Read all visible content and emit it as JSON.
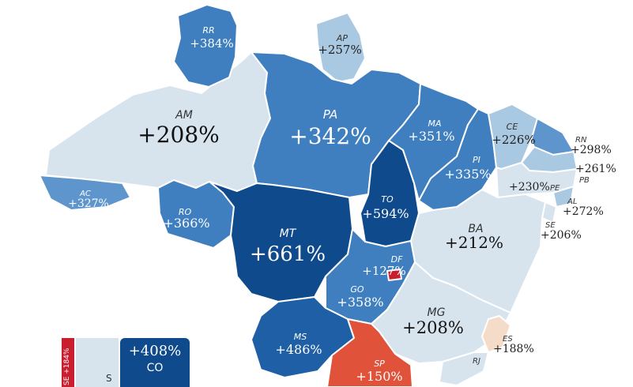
{
  "colors": {
    "darkest": "#0f4a8c",
    "dark": "#1f5fa5",
    "medium": "#3f7fbf",
    "medium_light": "#5d95cc",
    "light": "#a9c8e2",
    "lightest": "#d7e4ee",
    "peach": "#f5dcc8",
    "orange_red": "#e0533a",
    "red": "#c81e2e"
  },
  "states": [
    {
      "id": "AM",
      "abbr": "AM",
      "value": "+208%",
      "color": "lightest"
    },
    {
      "id": "RR",
      "abbr": "RR",
      "value": "+384%",
      "color": "medium"
    },
    {
      "id": "AP",
      "abbr": "AP",
      "value": "+257%",
      "color": "light"
    },
    {
      "id": "PA",
      "abbr": "PA",
      "value": "+342%",
      "color": "medium"
    },
    {
      "id": "AC",
      "abbr": "AC",
      "value": "+327%",
      "color": "medium_light"
    },
    {
      "id": "RO",
      "abbr": "RO",
      "value": "+366%",
      "color": "medium"
    },
    {
      "id": "MT",
      "abbr": "MT",
      "value": "+661%",
      "color": "darkest"
    },
    {
      "id": "TO",
      "abbr": "TO",
      "value": "+594%",
      "color": "darkest"
    },
    {
      "id": "MA",
      "abbr": "MA",
      "value": "+351%",
      "color": "medium"
    },
    {
      "id": "PI",
      "abbr": "PI",
      "value": "+335%",
      "color": "medium"
    },
    {
      "id": "CE",
      "abbr": "CE",
      "value": "+226%",
      "color": "light"
    },
    {
      "id": "RN",
      "abbr": "RN",
      "value": "+298%",
      "color": "medium_light"
    },
    {
      "id": "PB",
      "abbr": "PB",
      "value": "+261%",
      "color": "light"
    },
    {
      "id": "PE",
      "abbr": "PE",
      "value": "+230%",
      "color": "lightest"
    },
    {
      "id": "AL",
      "abbr": "AL",
      "value": "+272%",
      "color": "light"
    },
    {
      "id": "SE",
      "abbr": "SE",
      "value": "+206%",
      "color": "lightest"
    },
    {
      "id": "BA",
      "abbr": "BA",
      "value": "+212%",
      "color": "lightest"
    },
    {
      "id": "DF",
      "abbr": "DF",
      "value": "+127%",
      "color": "red"
    },
    {
      "id": "GO",
      "abbr": "GO",
      "value": "+358%",
      "color": "medium"
    },
    {
      "id": "MG",
      "abbr": "MG",
      "value": "+208%",
      "color": "lightest"
    },
    {
      "id": "ES",
      "abbr": "ES",
      "value": "+188%",
      "color": "peach"
    },
    {
      "id": "MS",
      "abbr": "MS",
      "value": "+486%",
      "color": "dark"
    },
    {
      "id": "SP",
      "abbr": "SP",
      "value": "+150%",
      "color": "orange_red"
    },
    {
      "id": "RJ",
      "abbr": "RJ",
      "value": "",
      "color": "lightest"
    }
  ],
  "legend": {
    "red_label": "SE +184%",
    "light_label": "S",
    "dark_value": "+408%",
    "dark_label": "CO"
  }
}
